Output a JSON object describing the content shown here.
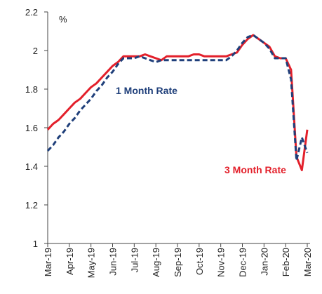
{
  "chart_data": {
    "type": "line",
    "y_unit_label": "%",
    "categories": [
      "Mar-19",
      null,
      null,
      null,
      "Apr-19",
      null,
      null,
      null,
      "May-19",
      null,
      null,
      null,
      "Jun-19",
      null,
      null,
      null,
      "Jul-19",
      null,
      null,
      null,
      "Aug-19",
      null,
      null,
      null,
      "Sep-19",
      null,
      null,
      null,
      "Oct-19",
      null,
      null,
      null,
      "Nov-19",
      null,
      null,
      null,
      "Dec-19",
      null,
      null,
      null,
      "Jan-20",
      null,
      null,
      null,
      "Feb-20",
      null,
      null,
      null,
      "Mar-20"
    ],
    "series": [
      {
        "name": "3 Month Rate",
        "color": "#e3202b",
        "dashed": false,
        "values": [
          1.59,
          1.62,
          1.64,
          1.67,
          1.7,
          1.73,
          1.75,
          1.78,
          1.81,
          1.83,
          1.86,
          1.89,
          1.92,
          1.94,
          1.97,
          1.97,
          1.97,
          1.97,
          1.98,
          1.97,
          1.96,
          1.95,
          1.97,
          1.97,
          1.97,
          1.97,
          1.97,
          1.98,
          1.98,
          1.97,
          1.97,
          1.97,
          1.97,
          1.97,
          1.98,
          1.99,
          2.03,
          2.06,
          2.08,
          2.06,
          2.04,
          2.02,
          1.97,
          1.96,
          1.96,
          1.9,
          1.45,
          1.38,
          1.59
        ]
      },
      {
        "name": "1 Month Rate",
        "color": "#1f3f7a",
        "dashed": true,
        "values": [
          1.48,
          1.51,
          1.55,
          1.58,
          1.62,
          1.65,
          1.69,
          1.72,
          1.75,
          1.79,
          1.82,
          1.86,
          1.89,
          1.93,
          1.96,
          1.96,
          1.96,
          1.97,
          1.96,
          1.95,
          1.94,
          1.95,
          1.95,
          1.95,
          1.95,
          1.95,
          1.95,
          1.95,
          1.95,
          1.95,
          1.95,
          1.95,
          1.95,
          1.95,
          1.97,
          2.0,
          2.04,
          2.07,
          2.08,
          2.06,
          2.04,
          2.01,
          1.96,
          1.96,
          1.96,
          1.85,
          1.43,
          1.55,
          1.47
        ]
      }
    ],
    "ylim": [
      1,
      2.2
    ],
    "yticks": [
      1,
      1.2,
      1.4,
      1.6,
      1.8,
      2,
      2.2
    ],
    "grid": false
  }
}
